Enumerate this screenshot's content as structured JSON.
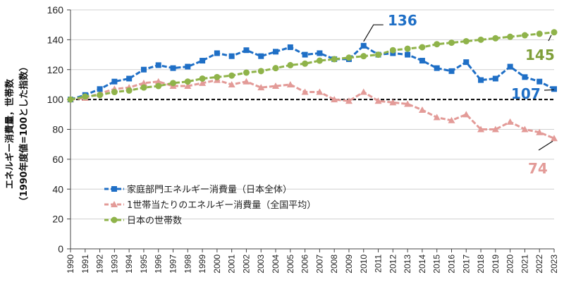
{
  "chart_data": {
    "type": "line",
    "title": "",
    "xlabel": "",
    "ylabel_line1": "エネルギー消費量，世帯数",
    "ylabel_line2": "（1990年度値=100とした指数）",
    "ylim": [
      0,
      160
    ],
    "yticks": [
      0,
      20,
      40,
      60,
      80,
      100,
      120,
      140,
      160
    ],
    "grid": "horizontal",
    "legend_position": "lower-left",
    "reference_line": 100,
    "x": [
      "1990",
      "1991",
      "1992",
      "1993",
      "1994",
      "1995",
      "1996",
      "1997",
      "1998",
      "1999",
      "2000",
      "2001",
      "2002",
      "2003",
      "2004",
      "2005",
      "2006",
      "2007",
      "2008",
      "2009",
      "2010",
      "2011",
      "2012",
      "2013",
      "2014",
      "2015",
      "2016",
      "2017",
      "2018",
      "2019",
      "2020",
      "2021",
      "2022",
      "2023"
    ],
    "series": [
      {
        "name": "家庭部門エネルギー消費量（日本全体）",
        "color": "#1f6fc6",
        "marker": "square",
        "values": [
          100,
          103,
          107,
          112,
          114,
          120,
          123,
          121,
          122,
          126,
          131,
          129,
          133,
          129,
          132,
          135,
          130,
          131,
          127,
          127,
          136,
          130,
          131,
          130,
          126,
          121,
          119,
          125,
          113,
          114,
          122,
          115,
          112,
          107
        ]
      },
      {
        "name": "1世帯当たりのエネルギー消費量（全国平均）",
        "color": "#e39b98",
        "marker": "triangle",
        "values": [
          100,
          101,
          104,
          107,
          108,
          111,
          112,
          109,
          109,
          111,
          113,
          110,
          112,
          108,
          109,
          110,
          105,
          105,
          100,
          99,
          105,
          99,
          98,
          97,
          93,
          88,
          86,
          90,
          80,
          80,
          85,
          80,
          78,
          74
        ]
      },
      {
        "name": "日本の世帯数",
        "color": "#8fb34a",
        "marker": "circle",
        "values": [
          100,
          102,
          103,
          105,
          106,
          108,
          109,
          111,
          112,
          114,
          115,
          116,
          118,
          119,
          121,
          123,
          124,
          126,
          127,
          128,
          129,
          130,
          133,
          134,
          135,
          137,
          138,
          139,
          140,
          141,
          142,
          143,
          144,
          145
        ]
      }
    ],
    "annotations": [
      {
        "text": "136",
        "series": 0,
        "color": "#1f6fc6"
      },
      {
        "text": "107",
        "series": 0,
        "color": "#1f6fc6"
      },
      {
        "text": "145",
        "series": 2,
        "color": "#7f9f3a"
      },
      {
        "text": "74",
        "series": 1,
        "color": "#e39b98"
      }
    ]
  }
}
